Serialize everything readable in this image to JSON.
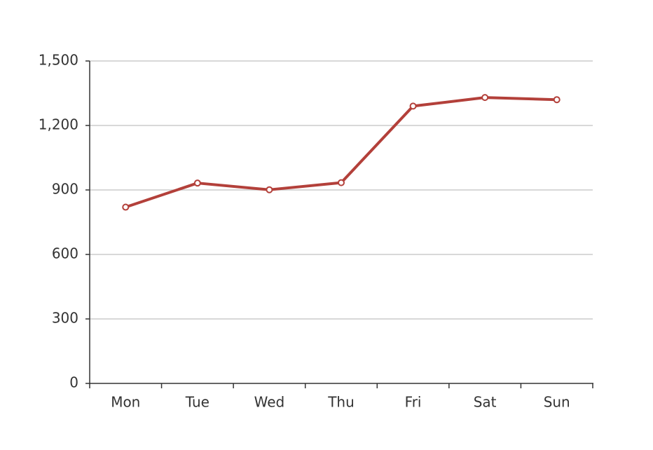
{
  "chart_data": {
    "type": "line",
    "categories": [
      "Mon",
      "Tue",
      "Wed",
      "Thu",
      "Fri",
      "Sat",
      "Sun"
    ],
    "series": [
      {
        "name": "series",
        "color": "#b3403a",
        "values": [
          820,
          932,
          901,
          934,
          1290,
          1330,
          1320
        ]
      }
    ],
    "ylim": [
      0,
      1500
    ],
    "yticks": [
      0,
      300,
      600,
      900,
      {
        "value": 1200,
        "label": "1,200"
      },
      {
        "value": 1500,
        "label": "1,500"
      }
    ],
    "grid": true
  }
}
